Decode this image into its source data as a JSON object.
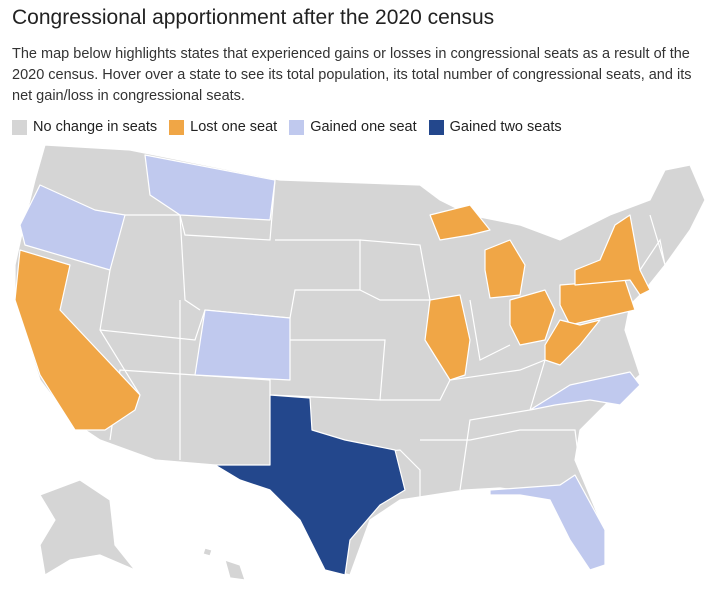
{
  "header": {
    "title": "Congressional apportionment after the 2020 census",
    "description": "The map below highlights states that experienced gains or losses in congressional seats as a result of the 2020 census. Hover over a state to see its total population, its total number of congressional seats, and its net gain/loss in congressional seats."
  },
  "legend": [
    {
      "label": "No change in seats",
      "color": "#d5d5d5"
    },
    {
      "label": "Lost one seat",
      "color": "#f0a646"
    },
    {
      "label": "Gained one seat",
      "color": "#c0c9ee"
    },
    {
      "label": "Gained two seats",
      "color": "#23478c"
    }
  ]
}
